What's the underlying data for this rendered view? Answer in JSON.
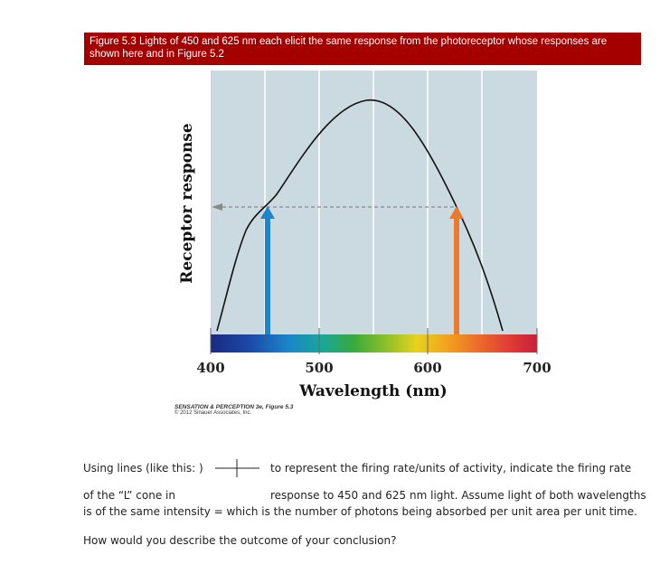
{
  "caption": "Figure 5.3 Lights of 450 and 625 nm each elicit the same response from the photoreceptor whose responses are shown here and in Figure 5.2",
  "figure": {
    "ylabel": "Receptor response",
    "xlabel": "Wavelength (nm)",
    "xticks": [
      "400",
      "500",
      "600",
      "700"
    ],
    "arrow_colors": {
      "left": "#1e86c8",
      "right": "#ec7a2a"
    },
    "panel_color": "#cbd9e1",
    "credit_title": "SENSATION & PERCEPTION 3e, Figure 5.3",
    "credit_sub": "© 2012 Sinauer Associates, Inc."
  },
  "question": {
    "line1_a": "Using lines (like this: )",
    "line1_b": "to represent the firing rate/units of activity, indicate the firing rate",
    "line2_a": "of the “L” cone in",
    "line2_b": "response to 450 and 625 nm light. Assume light of both wavelengths",
    "line3": "is of the same intensity = which is the number of photons being absorbed per unit area per unit time.",
    "line4": "How would you describe the outcome of your conclusion?"
  }
}
